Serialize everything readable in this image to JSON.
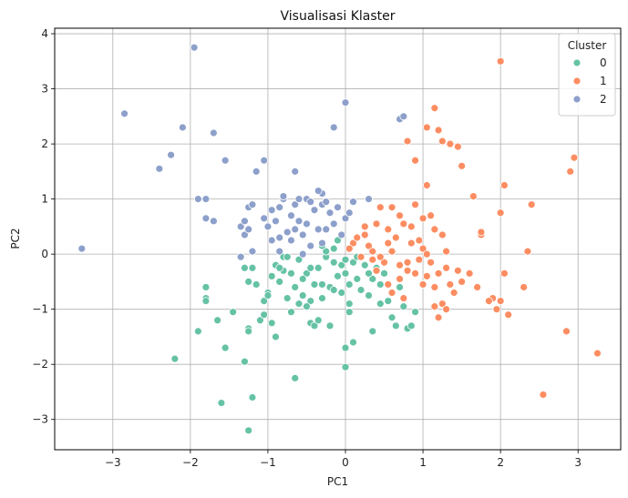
{
  "chart_data": {
    "type": "scatter",
    "title": "Visualisasi Klaster",
    "xlabel": "PC1",
    "ylabel": "PC2",
    "xlim": [
      -3.75,
      3.55
    ],
    "ylim": [
      -3.55,
      4.1
    ],
    "xticks": [
      -3,
      -2,
      -1,
      0,
      1,
      2,
      3
    ],
    "yticks": [
      -3,
      -2,
      -1,
      0,
      1,
      2,
      3,
      4
    ],
    "grid": true,
    "legend": {
      "title": "Cluster",
      "placement": "top-right"
    },
    "series": [
      {
        "name": "0",
        "color": "#66c2a5",
        "points": [
          [
            -2.2,
            -1.9
          ],
          [
            -1.9,
            -1.4
          ],
          [
            -1.8,
            -0.6
          ],
          [
            -1.8,
            -0.8
          ],
          [
            -1.8,
            -0.85
          ],
          [
            -1.65,
            -1.2
          ],
          [
            -1.55,
            -1.7
          ],
          [
            -1.6,
            -2.7
          ],
          [
            -1.45,
            -1.05
          ],
          [
            -1.3,
            -1.95
          ],
          [
            -1.25,
            -1.35
          ],
          [
            -1.25,
            -1.4
          ],
          [
            -1.2,
            -2.6
          ],
          [
            -1.25,
            -3.2
          ],
          [
            -1.25,
            -0.5
          ],
          [
            -1.2,
            -0.25
          ],
          [
            -1.15,
            -0.55
          ],
          [
            -1.1,
            -1.2
          ],
          [
            -1.05,
            -0.85
          ],
          [
            -1.0,
            -0.7
          ],
          [
            -0.95,
            -0.4
          ],
          [
            -0.9,
            -0.2
          ],
          [
            -0.85,
            -0.5
          ],
          [
            -0.8,
            -0.05
          ],
          [
            -0.8,
            -0.3
          ],
          [
            -0.75,
            -0.8
          ],
          [
            -0.7,
            -1.05
          ],
          [
            -0.7,
            -0.35
          ],
          [
            -0.65,
            -0.6
          ],
          [
            -0.6,
            -0.1
          ],
          [
            -0.6,
            -0.9
          ],
          [
            -0.55,
            -0.75
          ],
          [
            -0.5,
            -0.35
          ],
          [
            -0.45,
            -0.25
          ],
          [
            -0.45,
            -0.85
          ],
          [
            -0.4,
            -0.55
          ],
          [
            -0.35,
            -0.25
          ],
          [
            -0.3,
            -0.55
          ],
          [
            -0.25,
            -0.05
          ],
          [
            -0.2,
            -0.6
          ],
          [
            -0.15,
            -0.15
          ],
          [
            -0.1,
            -0.4
          ],
          [
            -0.05,
            -0.7
          ],
          [
            -0.05,
            -0.2
          ],
          [
            0.0,
            -0.1
          ],
          [
            0.0,
            -0.35
          ],
          [
            0.05,
            -0.55
          ],
          [
            0.05,
            -0.9
          ],
          [
            0.1,
            -1.6
          ],
          [
            0.0,
            -1.7
          ],
          [
            0.0,
            -2.05
          ],
          [
            0.1,
            -0.15
          ],
          [
            0.15,
            -0.45
          ],
          [
            0.2,
            -0.65
          ],
          [
            -0.9,
            -1.5
          ],
          [
            -0.95,
            -1.25
          ],
          [
            -0.65,
            -2.25
          ],
          [
            -0.45,
            -1.25
          ],
          [
            -0.4,
            -1.3
          ],
          [
            -0.35,
            -1.2
          ],
          [
            -0.2,
            -1.3
          ],
          [
            0.05,
            -1.05
          ],
          [
            0.3,
            -0.75
          ],
          [
            0.35,
            -1.4
          ],
          [
            0.35,
            -0.45
          ],
          [
            0.4,
            -0.25
          ],
          [
            0.45,
            -0.9
          ],
          [
            0.45,
            -0.55
          ],
          [
            0.5,
            -0.35
          ],
          [
            0.55,
            -0.85
          ],
          [
            0.6,
            -1.15
          ],
          [
            0.65,
            -1.3
          ],
          [
            0.7,
            -0.6
          ],
          [
            0.75,
            -0.95
          ],
          [
            0.8,
            -1.35
          ],
          [
            0.85,
            -1.3
          ],
          [
            0.9,
            -1.05
          ],
          [
            -0.15,
            0.1
          ],
          [
            -0.25,
            0.05
          ],
          [
            -0.3,
            0.15
          ],
          [
            -0.1,
            0.25
          ],
          [
            -1.0,
            -0.75
          ],
          [
            -1.05,
            -1.1
          ],
          [
            -0.55,
            -0.45
          ],
          [
            -0.5,
            -0.95
          ],
          [
            -0.3,
            -0.8
          ],
          [
            0.25,
            -0.2
          ],
          [
            0.3,
            -0.35
          ],
          [
            0.15,
            -0.05
          ],
          [
            -0.75,
            -0.05
          ],
          [
            -0.85,
            -0.25
          ],
          [
            -1.3,
            -0.25
          ],
          [
            -0.15,
            -0.65
          ]
        ]
      },
      {
        "name": "1",
        "color": "#fc8d62",
        "points": [
          [
            2.0,
            3.5
          ],
          [
            1.15,
            2.65
          ],
          [
            1.05,
            2.3
          ],
          [
            1.2,
            2.25
          ],
          [
            1.25,
            2.05
          ],
          [
            1.35,
            2.0
          ],
          [
            1.45,
            1.95
          ],
          [
            0.8,
            2.05
          ],
          [
            0.9,
            1.7
          ],
          [
            1.5,
            1.6
          ],
          [
            1.05,
            1.25
          ],
          [
            1.65,
            1.05
          ],
          [
            2.05,
            1.25
          ],
          [
            2.4,
            0.9
          ],
          [
            2.95,
            1.75
          ],
          [
            2.9,
            1.5
          ],
          [
            0.45,
            0.85
          ],
          [
            0.6,
            0.85
          ],
          [
            0.7,
            0.7
          ],
          [
            0.75,
            0.55
          ],
          [
            0.85,
            0.5
          ],
          [
            0.55,
            0.45
          ],
          [
            0.4,
            0.55
          ],
          [
            0.25,
            0.35
          ],
          [
            0.3,
            0.15
          ],
          [
            0.1,
            0.2
          ],
          [
            0.05,
            0.1
          ],
          [
            0.2,
            -0.05
          ],
          [
            0.35,
            -0.1
          ],
          [
            0.5,
            -0.15
          ],
          [
            0.6,
            0.05
          ],
          [
            0.7,
            -0.2
          ],
          [
            0.8,
            -0.3
          ],
          [
            0.9,
            -0.35
          ],
          [
            0.95,
            -0.1
          ],
          [
            1.0,
            0.1
          ],
          [
            1.05,
            -0.4
          ],
          [
            1.1,
            -0.15
          ],
          [
            1.15,
            -0.6
          ],
          [
            1.2,
            -0.35
          ],
          [
            1.25,
            0.35
          ],
          [
            1.3,
            -0.25
          ],
          [
            1.35,
            -0.55
          ],
          [
            1.4,
            -0.7
          ],
          [
            1.5,
            -0.5
          ],
          [
            1.6,
            -0.35
          ],
          [
            1.7,
            -0.6
          ],
          [
            1.75,
            0.35
          ],
          [
            1.75,
            0.4
          ],
          [
            1.9,
            -0.8
          ],
          [
            1.95,
            -1.0
          ],
          [
            2.0,
            0.75
          ],
          [
            2.05,
            -0.35
          ],
          [
            2.1,
            -1.1
          ],
          [
            2.3,
            -0.6
          ],
          [
            2.35,
            0.05
          ],
          [
            2.55,
            -2.55
          ],
          [
            2.85,
            -1.4
          ],
          [
            3.25,
            -1.8
          ],
          [
            1.0,
            0.65
          ],
          [
            1.1,
            0.7
          ],
          [
            1.15,
            0.45
          ],
          [
            0.9,
            0.9
          ],
          [
            1.25,
            -0.9
          ],
          [
            1.3,
            -1.0
          ],
          [
            1.2,
            -1.15
          ],
          [
            1.15,
            -0.95
          ],
          [
            0.75,
            -0.8
          ],
          [
            0.45,
            -0.05
          ],
          [
            0.35,
            0.05
          ],
          [
            0.15,
            0.3
          ],
          [
            0.25,
            0.5
          ],
          [
            0.55,
            0.2
          ],
          [
            0.65,
            0.3
          ],
          [
            0.85,
            0.2
          ],
          [
            0.95,
            0.25
          ],
          [
            1.05,
            0.0
          ],
          [
            0.7,
            -0.45
          ],
          [
            0.55,
            -0.55
          ],
          [
            0.4,
            -0.3
          ],
          [
            0.6,
            -0.7
          ],
          [
            0.8,
            -0.15
          ],
          [
            1.0,
            -0.55
          ],
          [
            1.3,
            0.05
          ],
          [
            1.45,
            -0.3
          ],
          [
            1.85,
            -0.85
          ],
          [
            2.0,
            -0.85
          ]
        ]
      },
      {
        "name": "2",
        "color": "#8da0cb",
        "points": [
          [
            -1.95,
            3.75
          ],
          [
            -2.85,
            2.55
          ],
          [
            -2.1,
            2.3
          ],
          [
            -2.25,
            1.8
          ],
          [
            -2.4,
            1.55
          ],
          [
            -1.7,
            2.2
          ],
          [
            -1.55,
            1.7
          ],
          [
            -1.9,
            1.0
          ],
          [
            -1.8,
            1.0
          ],
          [
            -1.8,
            0.65
          ],
          [
            -1.7,
            0.6
          ],
          [
            -1.35,
            0.5
          ],
          [
            -1.3,
            0.35
          ],
          [
            -1.3,
            0.6
          ],
          [
            -1.25,
            0.85
          ],
          [
            -1.2,
            0.9
          ],
          [
            -1.15,
            1.5
          ],
          [
            -1.05,
            1.7
          ],
          [
            -1.0,
            0.5
          ],
          [
            -0.95,
            0.8
          ],
          [
            -0.9,
            0.6
          ],
          [
            -0.85,
            0.3
          ],
          [
            -0.85,
            0.05
          ],
          [
            -0.8,
            1.0
          ],
          [
            -0.75,
            0.4
          ],
          [
            -0.7,
            0.7
          ],
          [
            -0.65,
            0.9
          ],
          [
            -0.6,
            0.6
          ],
          [
            -0.55,
            0.35
          ],
          [
            -0.5,
            1.0
          ],
          [
            -0.45,
            0.95
          ],
          [
            -0.4,
            0.8
          ],
          [
            -0.35,
            0.45
          ],
          [
            -0.3,
            1.1
          ],
          [
            -0.25,
            0.45
          ],
          [
            -0.2,
            0.75
          ],
          [
            -0.15,
            0.55
          ],
          [
            -0.1,
            0.85
          ],
          [
            -0.05,
            0.35
          ],
          [
            0.0,
            0.65
          ],
          [
            0.05,
            0.75
          ],
          [
            0.1,
            0.95
          ],
          [
            0.0,
            2.75
          ],
          [
            -0.15,
            2.3
          ],
          [
            -0.65,
            1.5
          ],
          [
            -0.3,
            0.9
          ],
          [
            -0.8,
            1.05
          ],
          [
            -1.05,
            0.65
          ],
          [
            -1.2,
            0.05
          ],
          [
            -1.35,
            -0.05
          ],
          [
            -0.7,
            0.25
          ],
          [
            -0.65,
            0.45
          ],
          [
            -0.55,
            0.0
          ],
          [
            -0.45,
            0.15
          ],
          [
            -0.35,
            1.15
          ],
          [
            0.3,
            1.0
          ],
          [
            0.7,
            2.45
          ],
          [
            0.75,
            2.5
          ],
          [
            -3.4,
            0.1
          ],
          [
            -0.25,
            0.95
          ],
          [
            -0.5,
            0.55
          ],
          [
            -0.95,
            0.25
          ],
          [
            -0.6,
            1.0
          ],
          [
            -0.3,
            0.2
          ],
          [
            -0.85,
            0.85
          ],
          [
            -1.25,
            0.45
          ]
        ]
      }
    ]
  }
}
